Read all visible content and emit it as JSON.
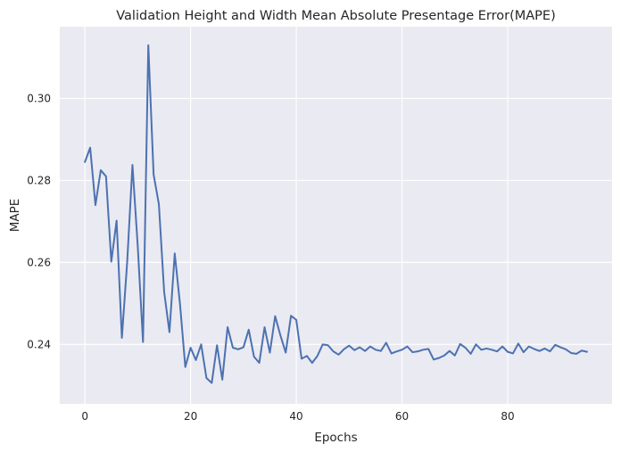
{
  "chart_data": {
    "type": "line",
    "title": "Validation Height and Width Mean Absolute Presentage Error(MAPE)",
    "xlabel": "Epochs",
    "ylabel": "MAPE",
    "xlim": [
      -4.75,
      99.75
    ],
    "ylim": [
      0.2255,
      0.3175
    ],
    "xticks": [
      0,
      20,
      40,
      60,
      80
    ],
    "yticks": [
      0.24,
      0.26,
      0.28,
      0.3
    ],
    "ytick_labels": [
      "0.24",
      "0.26",
      "0.28",
      "0.30"
    ],
    "grid": true,
    "series": [
      {
        "color": "#4c72b0",
        "x": [
          0,
          1,
          2,
          3,
          4,
          5,
          6,
          7,
          8,
          9,
          10,
          11,
          12,
          13,
          14,
          15,
          16,
          17,
          18,
          19,
          20,
          21,
          22,
          23,
          24,
          25,
          26,
          27,
          28,
          29,
          30,
          31,
          32,
          33,
          34,
          35,
          36,
          37,
          38,
          39,
          40,
          41,
          42,
          43,
          44,
          45,
          46,
          47,
          48,
          49,
          50,
          51,
          52,
          53,
          54,
          55,
          56,
          57,
          58,
          59,
          60,
          61,
          62,
          63,
          64,
          65,
          66,
          67,
          68,
          69,
          70,
          71,
          72,
          73,
          74,
          75,
          76,
          77,
          78,
          79,
          80,
          81,
          82,
          83,
          84,
          85,
          86,
          87,
          88,
          89,
          90,
          91,
          92,
          93,
          94,
          95
        ],
        "values": [
          0.2845,
          0.288,
          0.274,
          0.2825,
          0.281,
          0.2602,
          0.2702,
          0.2416,
          0.26,
          0.2838,
          0.264,
          0.2406,
          0.313,
          0.2815,
          0.2742,
          0.2528,
          0.243,
          0.2622,
          0.2498,
          0.2345,
          0.2392,
          0.2362,
          0.24,
          0.2318,
          0.2306,
          0.2398,
          0.2314,
          0.2442,
          0.2392,
          0.2388,
          0.2393,
          0.2436,
          0.237,
          0.2355,
          0.2442,
          0.238,
          0.2469,
          0.2422,
          0.238,
          0.247,
          0.246,
          0.2365,
          0.2372,
          0.2355,
          0.2372,
          0.24,
          0.2398,
          0.2383,
          0.2375,
          0.2388,
          0.2397,
          0.2386,
          0.2393,
          0.2384,
          0.2395,
          0.2387,
          0.2384,
          0.2404,
          0.2378,
          0.2383,
          0.2387,
          0.2395,
          0.2381,
          0.2383,
          0.2387,
          0.2389,
          0.2363,
          0.2367,
          0.2373,
          0.2384,
          0.2373,
          0.2401,
          0.2392,
          0.2377,
          0.24,
          0.2387,
          0.239,
          0.2387,
          0.2383,
          0.2395,
          0.2382,
          0.2378,
          0.2402,
          0.2381,
          0.2395,
          0.2389,
          0.2384,
          0.239,
          0.2383,
          0.2399,
          0.2393,
          0.2388,
          0.2379,
          0.2377,
          0.2385,
          0.2382
        ]
      }
    ]
  }
}
